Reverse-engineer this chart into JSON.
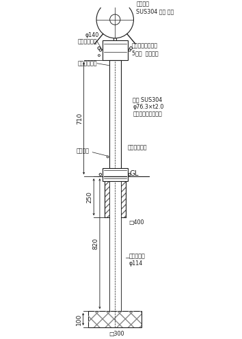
{
  "bg_color": "#ffffff",
  "line_color": "#1a1a1a",
  "fig_width": 3.54,
  "fig_height": 4.96,
  "dpi": 100,
  "annotations": {
    "cap_label": "キャップ\nSUS304 バフ 研磨",
    "chain_label": "ステンレスクサリ\n5ミリ  電解研磨",
    "rubber_label": "ゴムパッキン",
    "tape_label": "白反射テープ",
    "post_label": "支住 SUS304\nφ76.3×t2.0\nヘアーライン仕上げ",
    "hex_key_label": "六角キー",
    "onetouch_label": "ワンタッチ鍵",
    "outer_pipe_label": "外尴パイプ\nφ114",
    "gl_label": "GL",
    "dim_phi140": "φ140",
    "dim_400": "□400",
    "dim_300": "□300",
    "dim_710": "710",
    "dim_250": "250",
    "dim_820": "820",
    "dim_100": "100"
  }
}
